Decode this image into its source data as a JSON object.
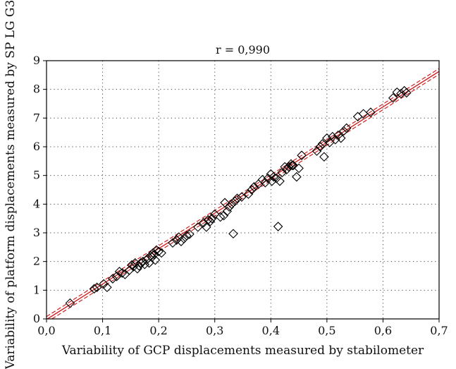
{
  "chart_data": {
    "type": "scatter",
    "title": "r = 0,990",
    "xlabel": "Variability of GCP displacements measured by stabilometer",
    "ylabel": "Variability of platform displacements measured by SP LG G3",
    "xlim": [
      0.0,
      0.7
    ],
    "ylim": [
      0,
      9
    ],
    "x_ticks": [
      0.0,
      0.1,
      0.2,
      0.3,
      0.4,
      0.5,
      0.6,
      0.7
    ],
    "x_tick_labels": [
      "0,0",
      "0,1",
      "0,2",
      "0,3",
      "0,4",
      "0,5",
      "0,6",
      "0,7"
    ],
    "y_ticks": [
      0,
      1,
      2,
      3,
      4,
      5,
      6,
      7,
      8,
      9
    ],
    "y_tick_labels": [
      "0",
      "1",
      "2",
      "3",
      "4",
      "5",
      "6",
      "7",
      "8",
      "9"
    ],
    "grid": true,
    "marker": "diamond",
    "marker_color": "#000000",
    "regression_color": "#cc2222",
    "regression": {
      "slope": 12.35,
      "intercept": -0.02,
      "x_range": [
        0.0,
        0.7
      ]
    },
    "confidence_band": {
      "upper": {
        "slope": 12.35,
        "intercept": 0.08
      },
      "lower": {
        "slope": 12.35,
        "intercept": -0.12
      }
    },
    "points": [
      [
        0.042,
        0.55
      ],
      [
        0.085,
        1.05
      ],
      [
        0.09,
        1.1
      ],
      [
        0.102,
        1.22
      ],
      [
        0.108,
        1.1
      ],
      [
        0.118,
        1.4
      ],
      [
        0.125,
        1.48
      ],
      [
        0.13,
        1.65
      ],
      [
        0.135,
        1.6
      ],
      [
        0.14,
        1.55
      ],
      [
        0.148,
        1.7
      ],
      [
        0.152,
        1.88
      ],
      [
        0.155,
        1.82
      ],
      [
        0.158,
        1.95
      ],
      [
        0.162,
        1.75
      ],
      [
        0.165,
        1.85
      ],
      [
        0.168,
        1.95
      ],
      [
        0.172,
        2.0
      ],
      [
        0.175,
        1.9
      ],
      [
        0.178,
        2.05
      ],
      [
        0.18,
        2.1
      ],
      [
        0.183,
        1.95
      ],
      [
        0.186,
        2.2
      ],
      [
        0.188,
        2.15
      ],
      [
        0.19,
        2.3
      ],
      [
        0.192,
        2.25
      ],
      [
        0.194,
        2.05
      ],
      [
        0.196,
        2.4
      ],
      [
        0.2,
        2.35
      ],
      [
        0.205,
        2.3
      ],
      [
        0.225,
        2.65
      ],
      [
        0.232,
        2.75
      ],
      [
        0.236,
        2.85
      ],
      [
        0.24,
        2.7
      ],
      [
        0.245,
        2.8
      ],
      [
        0.25,
        2.9
      ],
      [
        0.255,
        2.95
      ],
      [
        0.27,
        3.2
      ],
      [
        0.28,
        3.35
      ],
      [
        0.285,
        3.2
      ],
      [
        0.288,
        3.45
      ],
      [
        0.292,
        3.4
      ],
      [
        0.295,
        3.5
      ],
      [
        0.3,
        3.65
      ],
      [
        0.31,
        3.55
      ],
      [
        0.316,
        3.6
      ],
      [
        0.318,
        4.05
      ],
      [
        0.322,
        3.75
      ],
      [
        0.326,
        3.9
      ],
      [
        0.33,
        4.0
      ],
      [
        0.333,
        2.97
      ],
      [
        0.336,
        4.1
      ],
      [
        0.34,
        4.2
      ],
      [
        0.348,
        4.25
      ],
      [
        0.36,
        4.35
      ],
      [
        0.366,
        4.5
      ],
      [
        0.37,
        4.6
      ],
      [
        0.378,
        4.7
      ],
      [
        0.385,
        4.85
      ],
      [
        0.39,
        4.75
      ],
      [
        0.395,
        4.9
      ],
      [
        0.4,
        5.05
      ],
      [
        0.402,
        4.8
      ],
      [
        0.405,
        4.95
      ],
      [
        0.41,
        4.9
      ],
      [
        0.413,
        3.22
      ],
      [
        0.416,
        4.8
      ],
      [
        0.42,
        5.1
      ],
      [
        0.425,
        5.3
      ],
      [
        0.428,
        5.2
      ],
      [
        0.432,
        5.3
      ],
      [
        0.436,
        5.4
      ],
      [
        0.438,
        5.35
      ],
      [
        0.44,
        5.35
      ],
      [
        0.446,
        4.95
      ],
      [
        0.45,
        5.25
      ],
      [
        0.455,
        5.7
      ],
      [
        0.482,
        5.85
      ],
      [
        0.488,
        6.0
      ],
      [
        0.492,
        6.1
      ],
      [
        0.495,
        5.65
      ],
      [
        0.5,
        6.3
      ],
      [
        0.505,
        6.15
      ],
      [
        0.51,
        6.35
      ],
      [
        0.515,
        6.25
      ],
      [
        0.52,
        6.4
      ],
      [
        0.525,
        6.3
      ],
      [
        0.53,
        6.55
      ],
      [
        0.535,
        6.65
      ],
      [
        0.555,
        7.05
      ],
      [
        0.565,
        7.15
      ],
      [
        0.578,
        7.2
      ],
      [
        0.618,
        7.7
      ],
      [
        0.625,
        7.9
      ],
      [
        0.632,
        7.85
      ],
      [
        0.638,
        7.95
      ],
      [
        0.642,
        7.88
      ]
    ]
  }
}
